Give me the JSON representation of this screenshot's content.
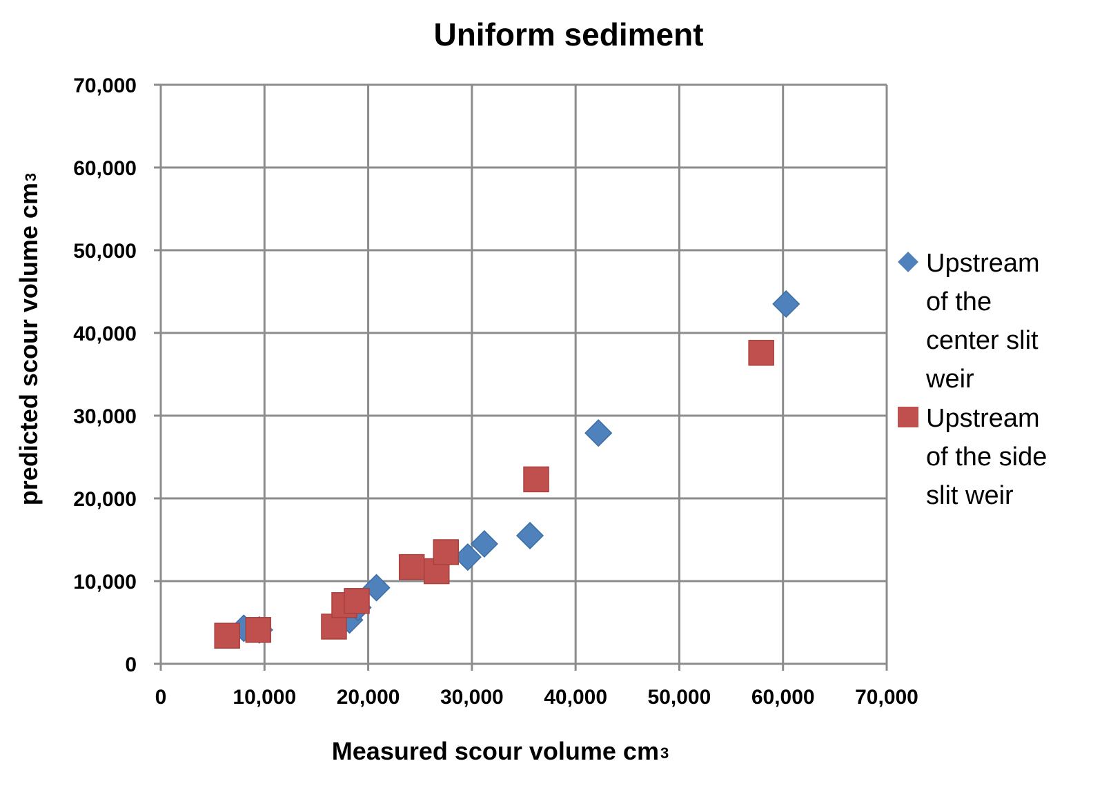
{
  "chart_data": {
    "type": "scatter",
    "title": "Uniform  sediment",
    "xlabel": "Measured  scour volume cm",
    "xlabel_sup": "3",
    "ylabel": "predicted scour volume cm",
    "ylabel_sup": "3",
    "xlim": [
      0,
      70000
    ],
    "ylim": [
      0,
      70000
    ],
    "x_ticks": [
      0,
      10000,
      20000,
      30000,
      40000,
      50000,
      60000,
      70000
    ],
    "y_ticks": [
      0,
      10000,
      20000,
      30000,
      40000,
      50000,
      60000,
      70000
    ],
    "x_tick_labels": [
      "0",
      "10,000",
      "20,000",
      "30,000",
      "40,000",
      "50,000",
      "60,000",
      "70,000"
    ],
    "y_tick_labels": [
      "0",
      "10,000",
      "20,000",
      "30,000",
      "40,000",
      "50,000",
      "60,000",
      "70,000"
    ],
    "grid": true,
    "legend_position": "right",
    "series": [
      {
        "name": "Upstream of the center slit weir",
        "legend_lines": [
          "Upstream",
          "of the",
          "center slit",
          "weir"
        ],
        "marker": "diamond",
        "color": "#4F81BD",
        "points": [
          [
            8000,
            4300
          ],
          [
            9500,
            4100
          ],
          [
            18200,
            5300
          ],
          [
            19000,
            6800
          ],
          [
            20800,
            9200
          ],
          [
            29600,
            12900
          ],
          [
            31200,
            14500
          ],
          [
            35600,
            15500
          ],
          [
            42200,
            27900
          ],
          [
            60300,
            43500
          ]
        ]
      },
      {
        "name": "Upstream of the side slit weir",
        "legend_lines": [
          "Upstream",
          "of the side",
          "slit weir"
        ],
        "marker": "square",
        "color": "#C0504D",
        "points": [
          [
            6400,
            3400
          ],
          [
            9400,
            4100
          ],
          [
            16700,
            4500
          ],
          [
            17700,
            7100
          ],
          [
            18900,
            7600
          ],
          [
            24200,
            11700
          ],
          [
            26600,
            11200
          ],
          [
            27500,
            13500
          ],
          [
            36200,
            22300
          ],
          [
            57900,
            37600
          ]
        ]
      }
    ]
  }
}
